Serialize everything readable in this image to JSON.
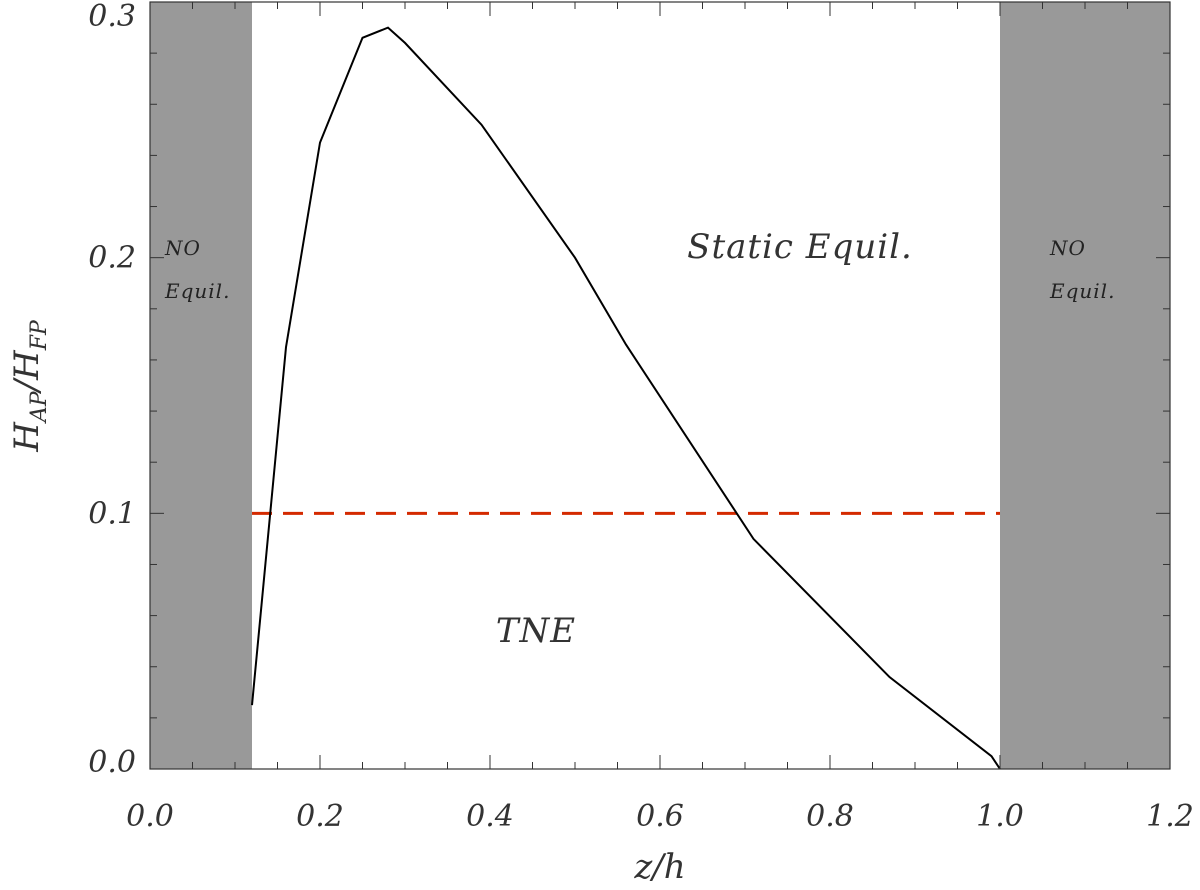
{
  "chart_data": {
    "type": "line",
    "xlabel": "z/h",
    "ylabel": {
      "main": "H",
      "sub1": "AP",
      "slash": "/",
      "main2": "H",
      "sub2": "FP"
    },
    "xlim": [
      0.0,
      1.2
    ],
    "ylim": [
      0.0,
      0.3
    ],
    "x_ticks": [
      0.0,
      0.2,
      0.4,
      0.6,
      0.8,
      1.0,
      1.2
    ],
    "x_tick_labels": [
      "0.0",
      "0.2",
      "0.4",
      "0.6",
      "0.8",
      "1.0",
      "1.2"
    ],
    "y_ticks": [
      0.0,
      0.1,
      0.2,
      0.3
    ],
    "y_tick_labels": [
      "0.0",
      "0.1",
      "0.2",
      "0.3"
    ],
    "series": [
      {
        "x": [
          0.12,
          0.16,
          0.2,
          0.25,
          0.28,
          0.3,
          0.39,
          0.5,
          0.56,
          0.71,
          0.87,
          0.99,
          1.0
        ],
        "y": [
          0.025,
          0.165,
          0.245,
          0.286,
          0.29,
          0.284,
          0.252,
          0.2,
          0.166,
          0.09,
          0.036,
          0.005,
          0.0
        ],
        "color": "#000000"
      }
    ],
    "threshold": {
      "y": 0.1,
      "color": "#d42a00",
      "style": "dashed"
    },
    "shaded_regions": [
      {
        "x": [
          0.0,
          0.12
        ],
        "color": "#999999"
      },
      {
        "x": [
          1.0,
          1.2
        ],
        "color": "#999999"
      }
    ],
    "annotations": {
      "no_equil_left": [
        "NO",
        "Equil."
      ],
      "no_equil_right": [
        "NO",
        "Equil."
      ],
      "static_equil": "Static Equil.",
      "tne": "TNE"
    },
    "grid": false
  }
}
